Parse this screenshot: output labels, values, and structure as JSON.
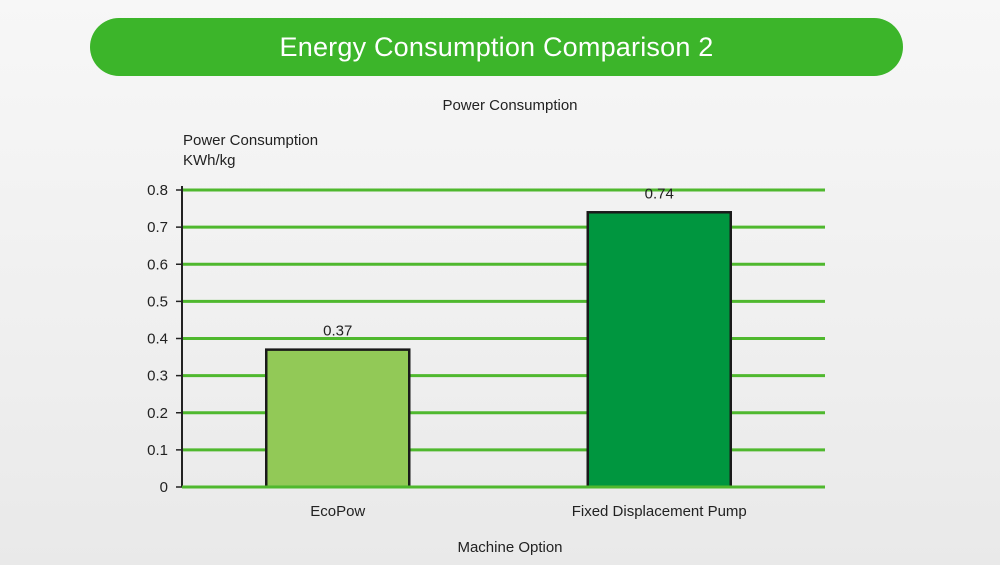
{
  "banner": {
    "title": "Energy Consumption Comparison 2"
  },
  "chart_data": {
    "type": "bar",
    "title": "Power Consumption",
    "ylabel_line1": "Power Consumption",
    "ylabel_line2": "KWh/kg",
    "xlabel": "Machine Option",
    "categories": [
      "EcoPow",
      "Fixed Displacement Pump"
    ],
    "values": [
      0.37,
      0.74
    ],
    "value_labels": [
      "0.37",
      "0.74"
    ],
    "bar_colors": [
      "#92c957",
      "#00963f"
    ],
    "ylim": [
      0,
      0.8
    ],
    "yticks": [
      0,
      0.1,
      0.2,
      0.3,
      0.4,
      0.5,
      0.6,
      0.7,
      0.8
    ],
    "ytick_labels": [
      "0",
      "0.1",
      "0.2",
      "0.3",
      "0.4",
      "0.5",
      "0.6",
      "0.7",
      "0.8"
    ],
    "grid": true,
    "grid_color": "#4fb82e",
    "axis_color": "#222222"
  }
}
